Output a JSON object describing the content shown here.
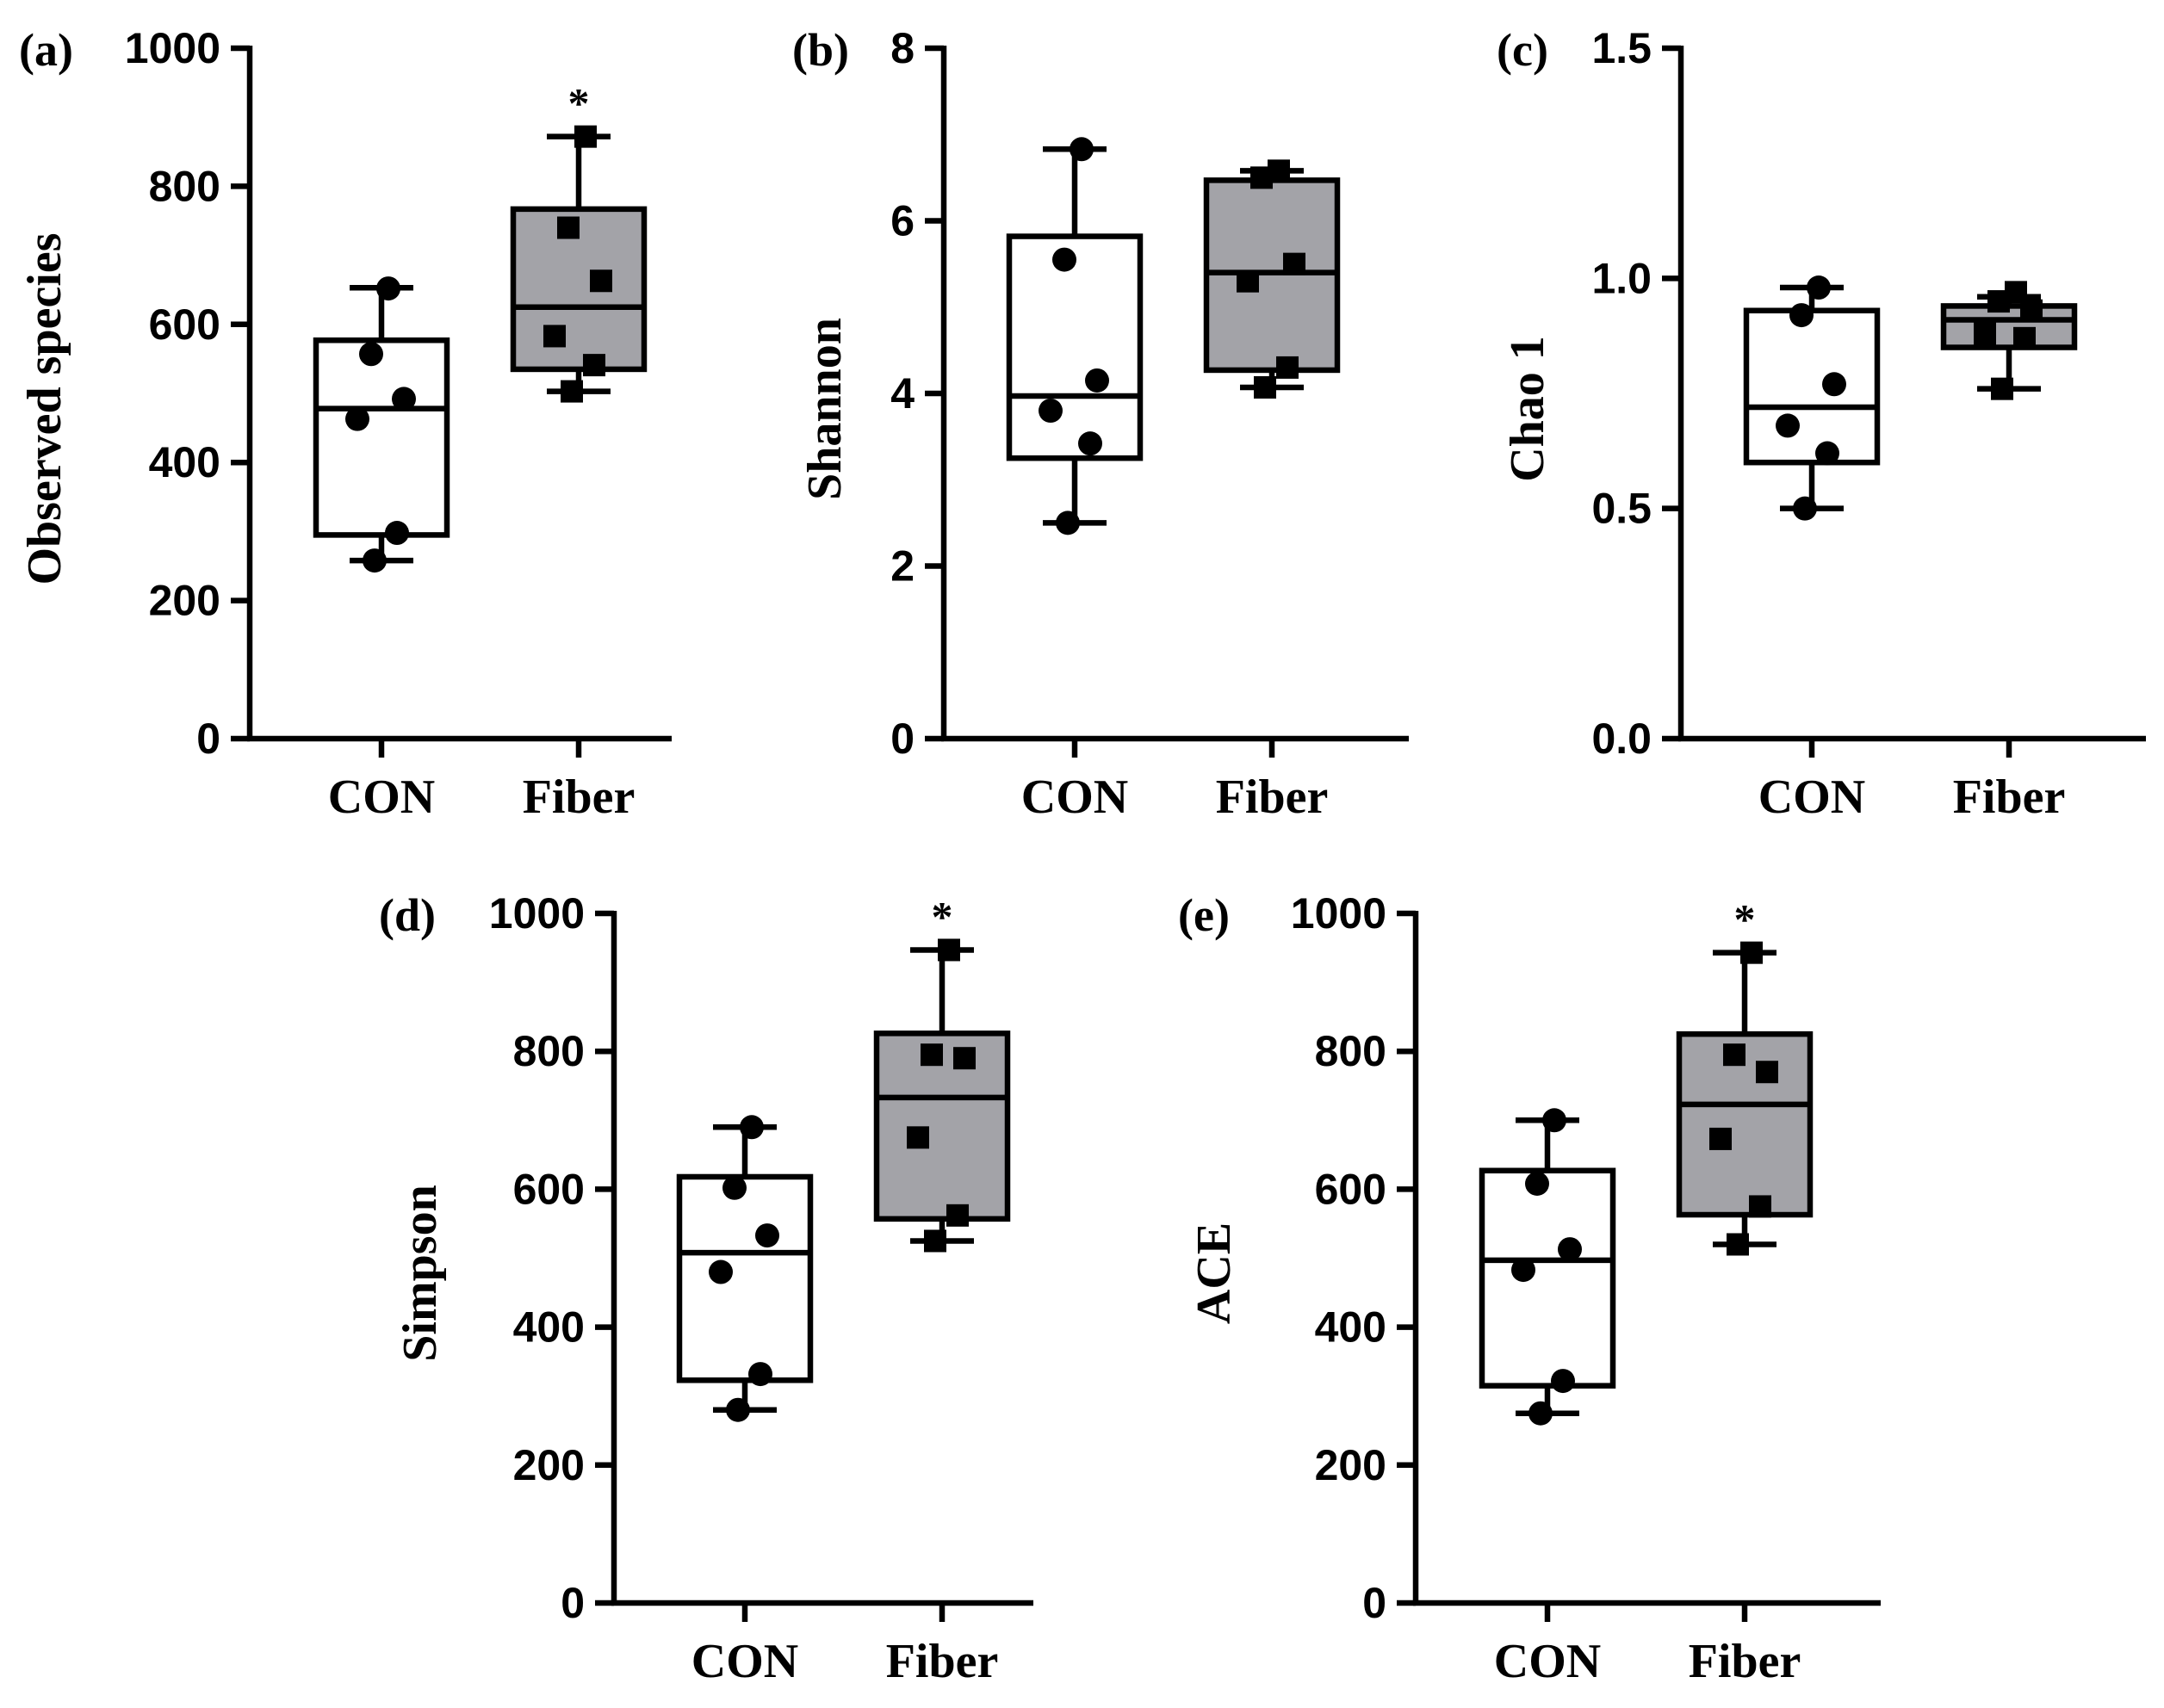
{
  "chart_data": [
    {
      "type": "boxplot",
      "panel_label": "(a)",
      "ylabel": "Observed species",
      "ylim": [
        0,
        1000
      ],
      "yticks": [
        "0",
        "200",
        "400",
        "600",
        "800",
        "1000"
      ],
      "categories": [
        "CON",
        "Fiber"
      ],
      "groups": [
        {
          "name": "CON",
          "box_fill": "#ffffff",
          "marker": "circle",
          "whisker_low": 258,
          "q1": 295,
          "median": 478,
          "q3": 577,
          "whisker_high": 653,
          "points": [
            258,
            298,
            463,
            492,
            557,
            652
          ],
          "significance": ""
        },
        {
          "name": "Fiber",
          "box_fill": "#a3a3a8",
          "marker": "square",
          "whisker_low": 503,
          "q1": 535,
          "median": 625,
          "q3": 767,
          "whisker_high": 872,
          "points": [
            503,
            541,
            583,
            663,
            740,
            872
          ],
          "significance": "*"
        }
      ]
    },
    {
      "type": "boxplot",
      "panel_label": "(b)",
      "ylabel": "Shannon",
      "ylim": [
        0,
        8
      ],
      "yticks": [
        "0",
        "2",
        "4",
        "6",
        "8"
      ],
      "categories": [
        "CON",
        "Fiber"
      ],
      "groups": [
        {
          "name": "CON",
          "box_fill": "#ffffff",
          "marker": "circle",
          "whisker_low": 2.5,
          "q1": 3.25,
          "median": 3.97,
          "q3": 5.82,
          "whisker_high": 6.83,
          "points": [
            2.5,
            3.42,
            3.8,
            4.15,
            5.55,
            6.83
          ],
          "significance": ""
        },
        {
          "name": "Fiber",
          "box_fill": "#a3a3a8",
          "marker": "square",
          "whisker_low": 4.07,
          "q1": 4.27,
          "median": 5.4,
          "q3": 6.47,
          "whisker_high": 6.58,
          "points": [
            4.07,
            4.3,
            5.3,
            5.5,
            6.5,
            6.58
          ],
          "significance": ""
        }
      ]
    },
    {
      "type": "boxplot",
      "panel_label": "(c)",
      "ylabel": "Chao 1",
      "ylim": [
        0,
        1.5
      ],
      "yticks": [
        "0.0",
        "0.5",
        "1.0",
        "1.5"
      ],
      "categories": [
        "CON",
        "Fiber"
      ],
      "groups": [
        {
          "name": "CON",
          "box_fill": "#ffffff",
          "marker": "circle",
          "whisker_low": 0.5,
          "q1": 0.6,
          "median": 0.72,
          "q3": 0.93,
          "whisker_high": 0.98,
          "points": [
            0.5,
            0.62,
            0.68,
            0.77,
            0.92,
            0.98
          ],
          "significance": ""
        },
        {
          "name": "Fiber",
          "box_fill": "#a3a3a8",
          "marker": "square",
          "whisker_low": 0.76,
          "q1": 0.85,
          "median": 0.91,
          "q3": 0.94,
          "whisker_high": 0.96,
          "points": [
            0.76,
            0.87,
            0.88,
            0.93,
            0.95,
            0.97
          ],
          "significance": ""
        }
      ]
    },
    {
      "type": "boxplot",
      "panel_label": "(d)",
      "ylabel": "Simpson",
      "ylim": [
        0,
        1000
      ],
      "yticks": [
        "0",
        "200",
        "400",
        "600",
        "800",
        "1000"
      ],
      "categories": [
        "CON",
        "Fiber"
      ],
      "groups": [
        {
          "name": "CON",
          "box_fill": "#ffffff",
          "marker": "circle",
          "whisker_low": 280,
          "q1": 323,
          "median": 508,
          "q3": 618,
          "whisker_high": 690,
          "points": [
            280,
            332,
            480,
            533,
            602,
            690
          ],
          "significance": ""
        },
        {
          "name": "Fiber",
          "box_fill": "#a3a3a8",
          "marker": "square",
          "whisker_low": 525,
          "q1": 557,
          "median": 733,
          "q3": 826,
          "whisker_high": 947,
          "points": [
            525,
            562,
            675,
            790,
            795,
            947
          ],
          "significance": "*"
        }
      ]
    },
    {
      "type": "boxplot",
      "panel_label": "(e)",
      "ylabel": "ACE",
      "ylim": [
        0,
        1000
      ],
      "yticks": [
        "0",
        "200",
        "400",
        "600",
        "800",
        "1000"
      ],
      "categories": [
        "CON",
        "Fiber"
      ],
      "groups": [
        {
          "name": "CON",
          "box_fill": "#ffffff",
          "marker": "circle",
          "whisker_low": 275,
          "q1": 315,
          "median": 497,
          "q3": 627,
          "whisker_high": 700,
          "points": [
            275,
            322,
            483,
            513,
            608,
            700
          ],
          "significance": ""
        },
        {
          "name": "Fiber",
          "box_fill": "#a3a3a8",
          "marker": "square",
          "whisker_low": 520,
          "q1": 563,
          "median": 723,
          "q3": 825,
          "whisker_high": 943,
          "points": [
            520,
            575,
            673,
            770,
            795,
            943
          ],
          "significance": "*"
        }
      ]
    }
  ]
}
